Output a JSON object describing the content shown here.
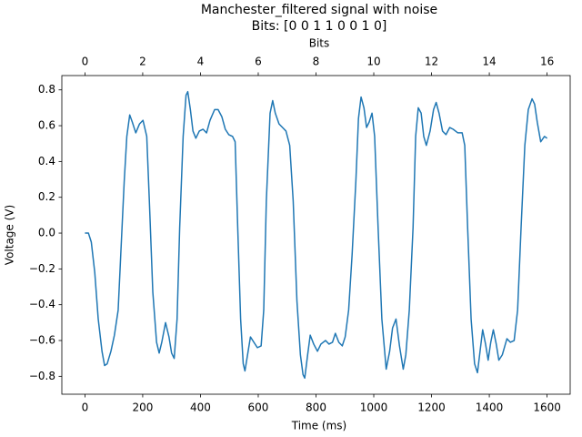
{
  "chart_data": {
    "type": "line",
    "title": "Manchester_filtered signal with noise",
    "subtitle": "Bits: [0 0 1 1 0 0 1 0]",
    "xlabel": "Time (ms)",
    "ylabel": "Voltage (V)",
    "x2label": "Bits",
    "color": "#1f77b4",
    "x": [
      0,
      12,
      22,
      34,
      46,
      59,
      68,
      77,
      90,
      102,
      115,
      124,
      136,
      145,
      155,
      164,
      176,
      189,
      201,
      214,
      223,
      235,
      248,
      257,
      266,
      279,
      291,
      300,
      309,
      319,
      328,
      340,
      350,
      356,
      365,
      374,
      384,
      396,
      409,
      421,
      433,
      449,
      461,
      474,
      486,
      498,
      511,
      520,
      529,
      539,
      548,
      554,
      563,
      573,
      585,
      597,
      610,
      619,
      628,
      641,
      650,
      659,
      672,
      684,
      696,
      709,
      721,
      734,
      746,
      755,
      761,
      771,
      780,
      792,
      805,
      817,
      833,
      845,
      857,
      867,
      879,
      891,
      901,
      913,
      925,
      938,
      947,
      956,
      966,
      975,
      984,
      994,
      1003,
      1015,
      1028,
      1043,
      1055,
      1065,
      1077,
      1089,
      1102,
      1111,
      1123,
      1136,
      1145,
      1154,
      1164,
      1173,
      1182,
      1195,
      1207,
      1216,
      1226,
      1238,
      1250,
      1263,
      1275,
      1291,
      1306,
      1315,
      1325,
      1337,
      1349,
      1359,
      1368,
      1377,
      1387,
      1396,
      1405,
      1414,
      1424,
      1433,
      1445,
      1461,
      1473,
      1486,
      1498,
      1510,
      1523,
      1535,
      1548,
      1557,
      1566,
      1578,
      1591,
      1600
    ],
    "values": [
      0,
      0,
      -0.05,
      -0.22,
      -0.48,
      -0.66,
      -0.74,
      -0.73,
      -0.66,
      -0.57,
      -0.43,
      -0.12,
      0.29,
      0.54,
      0.66,
      0.62,
      0.56,
      0.61,
      0.63,
      0.54,
      0.18,
      -0.33,
      -0.61,
      -0.67,
      -0.61,
      -0.5,
      -0.58,
      -0.67,
      -0.7,
      -0.48,
      0.03,
      0.54,
      0.77,
      0.79,
      0.69,
      0.57,
      0.53,
      0.57,
      0.58,
      0.56,
      0.63,
      0.69,
      0.69,
      0.65,
      0.58,
      0.55,
      0.54,
      0.51,
      0.03,
      -0.48,
      -0.73,
      -0.77,
      -0.68,
      -0.58,
      -0.61,
      -0.64,
      -0.63,
      -0.43,
      0.18,
      0.67,
      0.74,
      0.67,
      0.61,
      0.59,
      0.57,
      0.49,
      0.18,
      -0.38,
      -0.68,
      -0.79,
      -0.81,
      -0.68,
      -0.57,
      -0.62,
      -0.66,
      -0.62,
      -0.6,
      -0.62,
      -0.61,
      -0.56,
      -0.61,
      -0.63,
      -0.58,
      -0.43,
      -0.12,
      0.29,
      0.64,
      0.76,
      0.7,
      0.59,
      0.62,
      0.67,
      0.54,
      0.03,
      -0.48,
      -0.76,
      -0.66,
      -0.53,
      -0.48,
      -0.63,
      -0.76,
      -0.68,
      -0.43,
      0.03,
      0.54,
      0.7,
      0.67,
      0.54,
      0.49,
      0.57,
      0.69,
      0.73,
      0.67,
      0.57,
      0.55,
      0.59,
      0.58,
      0.56,
      0.56,
      0.49,
      0.03,
      -0.48,
      -0.73,
      -0.78,
      -0.66,
      -0.54,
      -0.62,
      -0.71,
      -0.61,
      -0.54,
      -0.62,
      -0.71,
      -0.68,
      -0.59,
      -0.61,
      -0.6,
      -0.43,
      0.03,
      0.49,
      0.69,
      0.75,
      0.72,
      0.62,
      0.51,
      0.54,
      0.53
    ],
    "xlim": [
      -80,
      1680
    ],
    "xticks": [
      0,
      200,
      400,
      600,
      800,
      1000,
      1200,
      1400,
      1600
    ],
    "x2lim": [
      -0.8,
      16.8
    ],
    "x2ticks": [
      0,
      2,
      4,
      6,
      8,
      10,
      12,
      14,
      16
    ],
    "ylim": [
      -0.9,
      0.88
    ],
    "yticks": [
      {
        "value": -0.8,
        "label": "−0.8"
      },
      {
        "value": -0.6,
        "label": "−0.6"
      },
      {
        "value": -0.4,
        "label": "−0.4"
      },
      {
        "value": -0.2,
        "label": "−0.2"
      },
      {
        "value": 0,
        "label": "0.0"
      },
      0.2,
      0.4,
      0.6,
      0.8
    ]
  }
}
